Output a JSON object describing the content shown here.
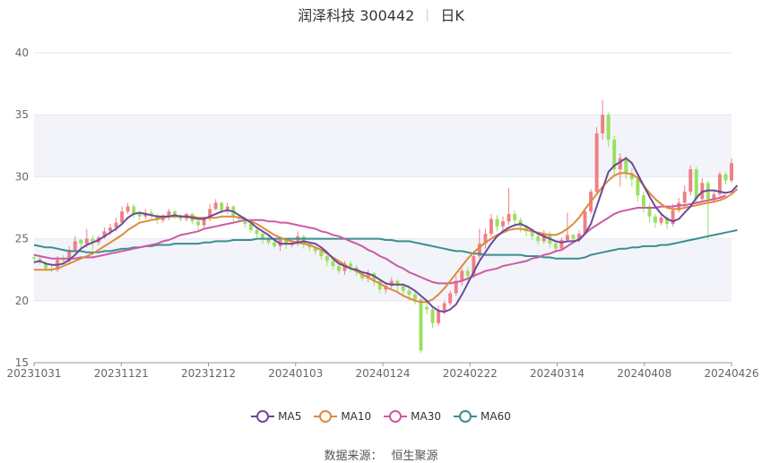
{
  "header": {
    "stock_name": "润泽科技 300442",
    "period": "日K"
  },
  "source": {
    "label": "数据来源：",
    "name": "恒生聚源"
  },
  "colors": {
    "up": "#f07f84",
    "down": "#9ae05e",
    "ma5": "#6a4a9c",
    "ma10": "#e08a3a",
    "ma30": "#cc5aa6",
    "ma60": "#3a8f8f",
    "grid": "#e6e6ee",
    "band": "#f3f4f9"
  },
  "chart_data": {
    "type": "candlestick",
    "ylim": [
      15,
      40
    ],
    "yticks": [
      15,
      20,
      25,
      30,
      35,
      40
    ],
    "xticks": [
      "20231031",
      "20231121",
      "20231212",
      "20240103",
      "20240124",
      "20240222",
      "20240314",
      "20240408",
      "20240426"
    ],
    "legend_position": "bottom",
    "grid": true,
    "legend": [
      {
        "name": "MA5",
        "color_key": "ma5"
      },
      {
        "name": "MA10",
        "color_key": "ma10"
      },
      {
        "name": "MA30",
        "color_key": "ma30"
      },
      {
        "name": "MA60",
        "color_key": "ma60"
      }
    ],
    "candles": [
      [
        23.5,
        23.4,
        23.8,
        23.0
      ],
      [
        23.4,
        23.1,
        23.6,
        22.9
      ],
      [
        23.0,
        22.6,
        23.2,
        22.4
      ],
      [
        22.6,
        22.5,
        22.9,
        22.3
      ],
      [
        22.5,
        23.3,
        23.6,
        22.3
      ],
      [
        23.3,
        23.2,
        23.7,
        23.0
      ],
      [
        23.2,
        24.1,
        24.4,
        23.1
      ],
      [
        24.1,
        24.8,
        25.2,
        23.9
      ],
      [
        24.9,
        24.6,
        25.0,
        24.2
      ],
      [
        24.6,
        25.0,
        25.8,
        24.3
      ],
      [
        25.0,
        24.7,
        25.3,
        24.1
      ],
      [
        24.7,
        25.1,
        25.3,
        24.5
      ],
      [
        25.1,
        25.6,
        25.9,
        25.0
      ],
      [
        25.6,
        25.9,
        26.2,
        25.3
      ],
      [
        25.9,
        26.3,
        26.7,
        25.6
      ],
      [
        26.3,
        27.2,
        27.6,
        26.1
      ],
      [
        27.2,
        27.6,
        27.9,
        27.0
      ],
      [
        27.6,
        27.0,
        27.8,
        26.7
      ],
      [
        27.0,
        26.8,
        27.2,
        26.5
      ],
      [
        26.8,
        27.1,
        27.4,
        26.6
      ],
      [
        27.1,
        26.9,
        27.4,
        26.6
      ],
      [
        26.9,
        26.5,
        27.0,
        26.2
      ],
      [
        26.5,
        26.8,
        27.0,
        26.3
      ],
      [
        26.8,
        27.2,
        27.4,
        26.5
      ],
      [
        27.2,
        26.9,
        27.3,
        26.6
      ],
      [
        26.9,
        26.6,
        27.0,
        26.4
      ],
      [
        26.6,
        27.0,
        27.1,
        26.4
      ],
      [
        27.0,
        26.4,
        27.1,
        26.2
      ],
      [
        26.4,
        26.1,
        26.5,
        25.7
      ],
      [
        26.1,
        26.6,
        26.8,
        25.9
      ],
      [
        26.6,
        27.4,
        27.8,
        26.4
      ],
      [
        27.4,
        27.9,
        28.2,
        27.3
      ],
      [
        27.9,
        27.3,
        28.0,
        27.0
      ],
      [
        27.3,
        27.6,
        27.9,
        27.0
      ],
      [
        27.6,
        26.8,
        27.7,
        26.4
      ],
      [
        26.8,
        26.6,
        26.9,
        26.3
      ],
      [
        26.6,
        26.2,
        26.8,
        25.9
      ],
      [
        26.2,
        25.7,
        26.3,
        25.5
      ],
      [
        25.7,
        25.4,
        25.8,
        25.1
      ],
      [
        25.4,
        25.0,
        25.5,
        24.6
      ],
      [
        25.0,
        24.7,
        25.2,
        24.5
      ],
      [
        24.7,
        24.4,
        25.0,
        24.2
      ],
      [
        24.4,
        24.9,
        25.1,
        24.0
      ],
      [
        24.9,
        24.5,
        25.0,
        24.2
      ],
      [
        24.5,
        24.6,
        24.9,
        24.3
      ],
      [
        24.6,
        25.2,
        25.6,
        24.4
      ],
      [
        25.2,
        24.6,
        25.3,
        24.2
      ],
      [
        24.6,
        24.3,
        24.7,
        24.0
      ],
      [
        24.3,
        24.0,
        24.4,
        23.7
      ],
      [
        24.0,
        23.6,
        24.1,
        23.3
      ],
      [
        23.6,
        23.2,
        23.7,
        22.8
      ],
      [
        23.2,
        22.8,
        23.3,
        22.5
      ],
      [
        22.8,
        22.4,
        22.9,
        22.2
      ],
      [
        22.4,
        23.0,
        23.2,
        22.1
      ],
      [
        23.0,
        22.7,
        23.2,
        22.3
      ],
      [
        22.7,
        22.3,
        22.9,
        22.0
      ],
      [
        22.3,
        21.8,
        22.4,
        21.6
      ],
      [
        21.8,
        22.2,
        22.5,
        21.5
      ],
      [
        22.2,
        21.6,
        22.3,
        21.2
      ],
      [
        21.6,
        20.9,
        21.8,
        20.6
      ],
      [
        20.9,
        21.2,
        21.4,
        20.6
      ],
      [
        21.2,
        21.6,
        21.9,
        21.0
      ],
      [
        21.6,
        21.2,
        21.7,
        20.8
      ],
      [
        21.2,
        20.8,
        21.4,
        20.4
      ],
      [
        20.8,
        20.5,
        21.1,
        20.0
      ],
      [
        20.5,
        20.1,
        20.8,
        19.7
      ],
      [
        20.1,
        16.0,
        20.2,
        15.8
      ],
      [
        19.5,
        19.3,
        20.1,
        18.9
      ],
      [
        19.3,
        18.2,
        19.5,
        17.8
      ],
      [
        18.2,
        19.2,
        19.6,
        18.0
      ],
      [
        19.2,
        19.8,
        20.0,
        18.9
      ],
      [
        19.8,
        20.6,
        20.8,
        19.6
      ],
      [
        20.6,
        21.6,
        22.0,
        20.4
      ],
      [
        21.6,
        22.4,
        22.6,
        21.2
      ],
      [
        22.4,
        22.0,
        22.7,
        21.6
      ],
      [
        22.0,
        23.6,
        23.9,
        21.8
      ],
      [
        23.6,
        24.6,
        25.8,
        23.4
      ],
      [
        24.6,
        25.4,
        25.8,
        24.2
      ],
      [
        25.4,
        26.6,
        27.0,
        25.2
      ],
      [
        26.6,
        26.0,
        26.9,
        25.6
      ],
      [
        26.0,
        26.4,
        26.8,
        25.7
      ],
      [
        26.4,
        27.0,
        29.1,
        26.1
      ],
      [
        27.0,
        26.5,
        27.3,
        26.0
      ],
      [
        26.5,
        26.0,
        26.7,
        25.5
      ],
      [
        26.0,
        25.6,
        26.1,
        25.2
      ],
      [
        25.6,
        25.2,
        25.8,
        24.9
      ],
      [
        25.2,
        24.8,
        25.4,
        24.5
      ],
      [
        24.8,
        25.4,
        25.7,
        24.6
      ],
      [
        25.4,
        24.6,
        25.6,
        24.3
      ],
      [
        24.6,
        24.2,
        24.8,
        23.9
      ],
      [
        24.2,
        24.9,
        25.1,
        24.0
      ],
      [
        24.9,
        25.3,
        27.1,
        24.8
      ],
      [
        25.3,
        25.0,
        25.4,
        24.6
      ],
      [
        25.0,
        25.4,
        25.7,
        24.7
      ],
      [
        25.4,
        27.2,
        27.4,
        25.3
      ],
      [
        27.2,
        28.8,
        29.0,
        27.0
      ],
      [
        28.8,
        33.5,
        34.0,
        28.6
      ],
      [
        33.5,
        35.0,
        36.2,
        33.0
      ],
      [
        35.0,
        33.0,
        35.2,
        32.4
      ],
      [
        33.0,
        30.6,
        33.3,
        30.1
      ],
      [
        30.6,
        31.5,
        31.9,
        29.2
      ],
      [
        31.5,
        30.3,
        31.7,
        29.8
      ],
      [
        30.3,
        29.8,
        30.7,
        29.2
      ],
      [
        29.8,
        28.5,
        30.0,
        28.0
      ],
      [
        28.5,
        27.6,
        28.8,
        27.1
      ],
      [
        27.6,
        26.8,
        27.9,
        26.3
      ],
      [
        26.8,
        26.3,
        27.0,
        25.9
      ],
      [
        26.3,
        26.7,
        27.1,
        26.1
      ],
      [
        26.7,
        26.2,
        26.9,
        25.8
      ],
      [
        26.2,
        27.3,
        27.8,
        26.0
      ],
      [
        27.3,
        27.9,
        28.3,
        27.1
      ],
      [
        27.9,
        28.8,
        29.3,
        27.6
      ],
      [
        28.8,
        30.6,
        30.9,
        28.5
      ],
      [
        30.6,
        28.2,
        30.8,
        27.9
      ],
      [
        28.2,
        29.5,
        29.9,
        28.0
      ],
      [
        29.5,
        28.2,
        29.7,
        24.9
      ],
      [
        28.2,
        28.6,
        28.9,
        27.9
      ],
      [
        28.6,
        30.2,
        30.4,
        28.4
      ],
      [
        30.2,
        29.7,
        30.4,
        29.4
      ],
      [
        29.7,
        31.1,
        31.5,
        29.5
      ]
    ],
    "ma5": [
      23.1,
      23.2,
      23.0,
      22.9,
      22.9,
      23.0,
      23.3,
      23.7,
      24.2,
      24.5,
      24.7,
      24.9,
      25.2,
      25.5,
      25.8,
      26.2,
      26.7,
      27.0,
      27.1,
      27.0,
      26.9,
      26.8,
      26.8,
      26.8,
      26.9,
      26.8,
      26.8,
      26.7,
      26.6,
      26.6,
      26.8,
      27.0,
      27.2,
      27.3,
      27.2,
      26.9,
      26.6,
      26.3,
      25.9,
      25.6,
      25.3,
      24.9,
      24.6,
      24.6,
      24.6,
      24.7,
      24.8,
      24.7,
      24.6,
      24.3,
      23.9,
      23.4,
      23.0,
      22.8,
      22.6,
      22.5,
      22.3,
      22.2,
      22.0,
      21.7,
      21.4,
      21.3,
      21.3,
      21.3,
      21.1,
      20.8,
      20.4,
      20.0,
      19.5,
      19.2,
      19.1,
      19.3,
      19.7,
      20.5,
      21.4,
      22.3,
      23.2,
      23.9,
      24.6,
      25.2,
      25.6,
      25.9,
      26.1,
      26.2,
      26.0,
      25.7,
      25.4,
      25.2,
      25.0,
      24.8,
      24.7,
      24.8,
      24.8,
      24.9,
      25.4,
      26.2,
      27.6,
      29.0,
      30.4,
      30.9,
      31.2,
      31.5,
      31.1,
      30.2,
      29.3,
      28.4,
      27.6,
      27.0,
      26.6,
      26.4,
      26.6,
      27.1,
      27.6,
      28.3,
      28.8,
      28.9,
      28.9,
      28.8,
      28.7,
      28.8,
      29.3
    ],
    "ma10": [
      22.5,
      22.5,
      22.5,
      22.5,
      22.6,
      22.8,
      23.0,
      23.2,
      23.4,
      23.6,
      23.8,
      24.1,
      24.4,
      24.7,
      25.0,
      25.3,
      25.7,
      26.0,
      26.3,
      26.4,
      26.5,
      26.6,
      26.7,
      26.8,
      26.8,
      26.8,
      26.8,
      26.8,
      26.7,
      26.7,
      26.7,
      26.7,
      26.8,
      26.8,
      26.8,
      26.7,
      26.6,
      26.4,
      26.2,
      25.9,
      25.6,
      25.3,
      25.1,
      24.9,
      24.8,
      24.7,
      24.6,
      24.5,
      24.3,
      24.1,
      23.8,
      23.5,
      23.2,
      22.9,
      22.6,
      22.4,
      22.1,
      21.9,
      21.6,
      21.4,
      21.1,
      20.9,
      20.7,
      20.4,
      20.2,
      20.0,
      19.9,
      19.9,
      20.1,
      20.5,
      21.0,
      21.6,
      22.2,
      22.8,
      23.4,
      23.9,
      24.3,
      24.7,
      25.0,
      25.3,
      25.5,
      25.7,
      25.8,
      25.8,
      25.7,
      25.6,
      25.5,
      25.4,
      25.3,
      25.3,
      25.5,
      25.8,
      26.2,
      26.7,
      27.4,
      28.0,
      28.6,
      29.2,
      29.7,
      30.1,
      30.3,
      30.3,
      30.2,
      29.9,
      29.3,
      28.7,
      28.2,
      27.8,
      27.5,
      27.4,
      27.4,
      27.5,
      27.6,
      27.7,
      27.8,
      27.9,
      28.0,
      28.1,
      28.3,
      28.6,
      29.0
    ],
    "ma30": [
      23.7,
      23.6,
      23.5,
      23.4,
      23.4,
      23.4,
      23.4,
      23.4,
      23.5,
      23.5,
      23.5,
      23.6,
      23.7,
      23.8,
      23.9,
      24.0,
      24.1,
      24.2,
      24.3,
      24.4,
      24.5,
      24.6,
      24.8,
      24.9,
      25.1,
      25.3,
      25.4,
      25.5,
      25.6,
      25.8,
      25.9,
      26.0,
      26.1,
      26.2,
      26.3,
      26.4,
      26.5,
      26.5,
      26.5,
      26.5,
      26.4,
      26.4,
      26.3,
      26.3,
      26.2,
      26.1,
      26.0,
      25.9,
      25.8,
      25.6,
      25.5,
      25.3,
      25.2,
      25.0,
      24.8,
      24.6,
      24.4,
      24.1,
      23.9,
      23.6,
      23.4,
      23.1,
      22.8,
      22.6,
      22.3,
      22.1,
      21.9,
      21.7,
      21.5,
      21.4,
      21.4,
      21.4,
      21.5,
      21.6,
      21.8,
      22.0,
      22.2,
      22.4,
      22.5,
      22.6,
      22.8,
      22.9,
      23.0,
      23.1,
      23.2,
      23.4,
      23.5,
      23.7,
      23.8,
      24.0,
      24.1,
      24.4,
      24.7,
      25.0,
      25.4,
      25.8,
      26.1,
      26.4,
      26.7,
      27.0,
      27.2,
      27.3,
      27.4,
      27.5,
      27.5,
      27.5,
      27.5,
      27.6,
      27.6,
      27.6,
      27.7,
      27.7,
      27.8,
      27.9,
      28.0,
      28.1,
      28.2,
      28.3,
      28.5
    ],
    "ma60": [
      24.5,
      24.4,
      24.3,
      24.3,
      24.2,
      24.1,
      24.0,
      24.0,
      24.0,
      23.9,
      23.9,
      23.9,
      24.0,
      24.0,
      24.1,
      24.2,
      24.2,
      24.3,
      24.3,
      24.4,
      24.4,
      24.5,
      24.5,
      24.5,
      24.6,
      24.6,
      24.6,
      24.6,
      24.6,
      24.7,
      24.7,
      24.8,
      24.8,
      24.8,
      24.9,
      24.9,
      24.9,
      24.9,
      25.0,
      25.0,
      25.0,
      25.0,
      25.0,
      25.0,
      25.0,
      25.0,
      25.0,
      25.0,
      25.0,
      25.0,
      25.0,
      25.0,
      25.0,
      25.0,
      25.0,
      25.0,
      25.0,
      25.0,
      25.0,
      25.0,
      24.9,
      24.9,
      24.8,
      24.8,
      24.8,
      24.7,
      24.6,
      24.5,
      24.4,
      24.3,
      24.2,
      24.1,
      24.0,
      24.0,
      23.9,
      23.8,
      23.8,
      23.7,
      23.7,
      23.7,
      23.7,
      23.7,
      23.7,
      23.7,
      23.6,
      23.6,
      23.6,
      23.5,
      23.5,
      23.4,
      23.4,
      23.4,
      23.4,
      23.4,
      23.5,
      23.7,
      23.8,
      23.9,
      24.0,
      24.1,
      24.2,
      24.2,
      24.3,
      24.3,
      24.4,
      24.4,
      24.4,
      24.5,
      24.5,
      24.6,
      24.7,
      24.8,
      24.9,
      25.0,
      25.1,
      25.2,
      25.3,
      25.4,
      25.5,
      25.6,
      25.7
    ]
  }
}
